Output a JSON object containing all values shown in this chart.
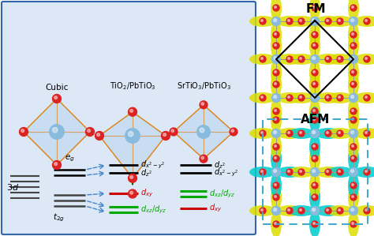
{
  "title": "",
  "bg_color": "#ffffff",
  "fig_width": 4.74,
  "fig_height": 2.99,
  "labels": {
    "cubic": "Cubic",
    "tio2": "TiO$_2$/PbTiO$_3$",
    "srtio3": "SrTiO$_3$/PbTiO$_3$",
    "fm": "FM",
    "afm": "AFM",
    "3d": "$3d$",
    "eg": "$e_g$",
    "t2g": "$t_{2g}$",
    "dx2y2_1": "$d_{x^2-y^2}$",
    "dz2_1": "$d_{z^2}$",
    "dxy_1": "$d_{xy}$",
    "dxzyz_1": "$d_{xz}/d_{yz}$",
    "dz2_2": "$d_{z^2}$",
    "dx2y2_2": "$d_{x^2-y^2}$",
    "dxzyz_legend": "$d_{xz}/d_{yz}$",
    "dxy_legend": "$d_{xy}$"
  },
  "colors": {
    "black": "#000000",
    "red": "#cc0000",
    "green": "#00aa00",
    "blue_dashed": "#4488cc",
    "atom_blue": "#88bbdd",
    "atom_red": "#dd2222",
    "panel_border": "#3366aa",
    "bond_color": "#dd8822",
    "face_color": "#aaccee"
  }
}
